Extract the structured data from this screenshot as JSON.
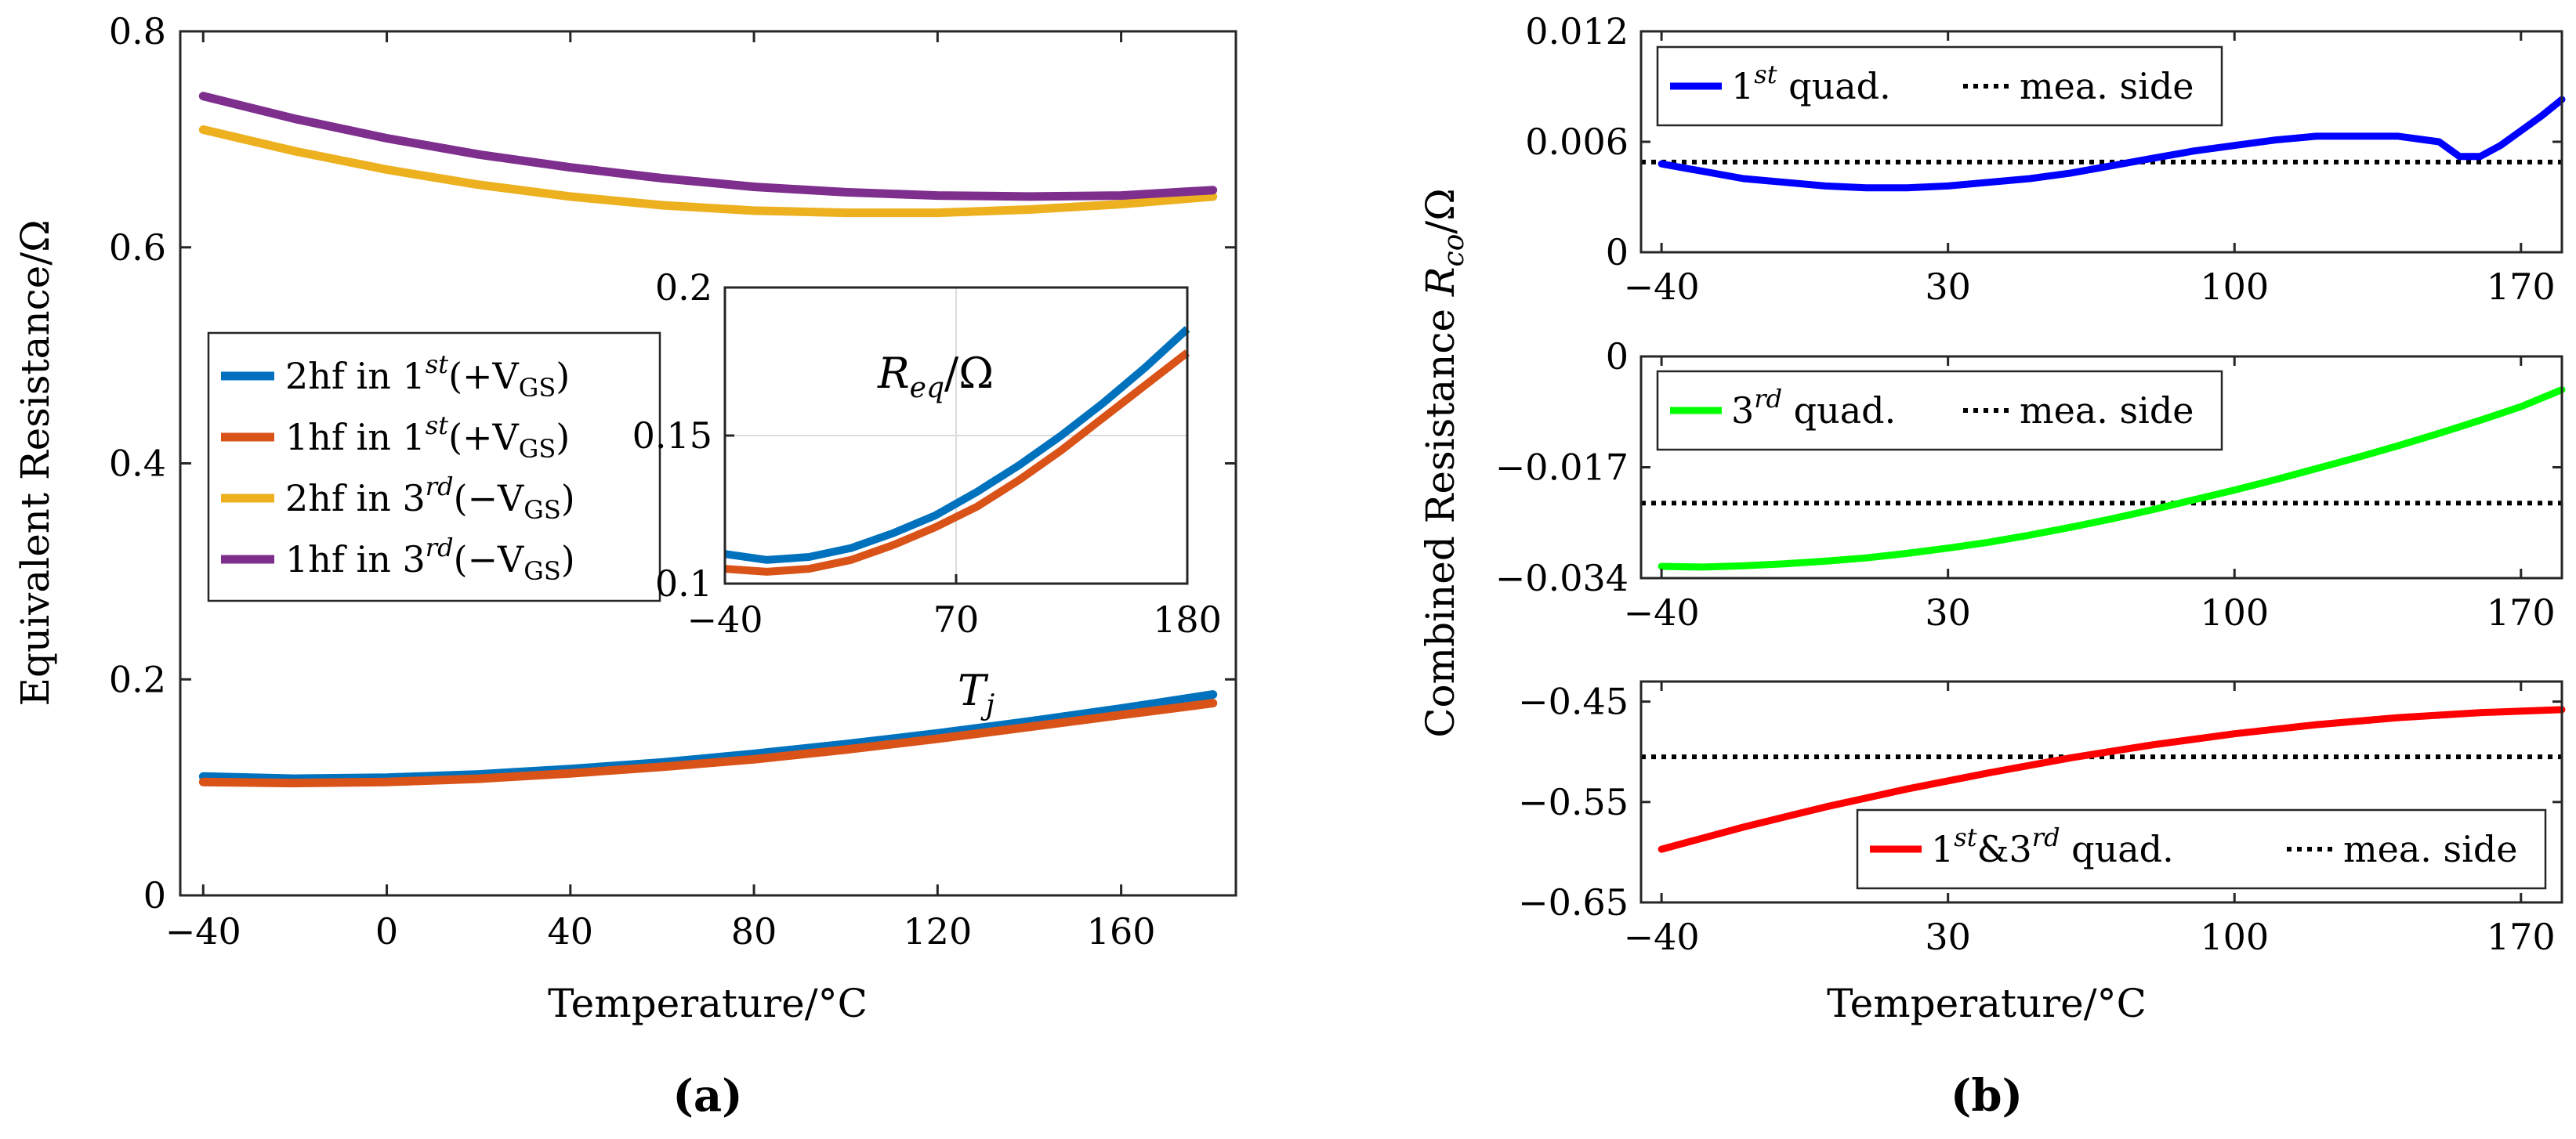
{
  "chart_data": [
    {
      "panel": "(a)",
      "type": "line",
      "xlabel": "Temperature/°C",
      "ylabel": "Equivalent Resistance/Ω",
      "xlim": [
        -45,
        185
      ],
      "ylim": [
        0,
        0.8
      ],
      "xticks": [
        "−40",
        "0",
        "40",
        "80",
        "120",
        "160"
      ],
      "yticks": [
        "0",
        "0.2",
        "0.4",
        "0.6",
        "0.8"
      ],
      "grid": false,
      "legend_position": "middle-left",
      "x": [
        -40,
        -20,
        0,
        20,
        40,
        60,
        80,
        100,
        120,
        140,
        160,
        180
      ],
      "series": [
        {
          "name": "2hf in 1st(+VGS)",
          "color": "#0072BD",
          "values": [
            0.11,
            0.108,
            0.109,
            0.112,
            0.117,
            0.123,
            0.131,
            0.14,
            0.15,
            0.161,
            0.173,
            0.186
          ]
        },
        {
          "name": "1hf in 1st(+VGS)",
          "color": "#D95319",
          "values": [
            0.105,
            0.104,
            0.105,
            0.108,
            0.113,
            0.119,
            0.126,
            0.135,
            0.145,
            0.156,
            0.167,
            0.178
          ]
        },
        {
          "name": "2hf in 3rd(−VGS)",
          "color": "#EDB120",
          "values": [
            0.709,
            0.689,
            0.672,
            0.658,
            0.647,
            0.639,
            0.634,
            0.632,
            0.632,
            0.635,
            0.64,
            0.647
          ]
        },
        {
          "name": "1hf in 3rd(−VGS)",
          "color": "#7E2F8E",
          "values": [
            0.74,
            0.719,
            0.701,
            0.686,
            0.674,
            0.664,
            0.656,
            0.651,
            0.648,
            0.647,
            0.648,
            0.653
          ]
        }
      ],
      "legend": {
        "entries": [
          {
            "prefix": "2hf in 1",
            "ord": "st",
            "mid": "(+V",
            "sub": "GS",
            "end": ")",
            "color": "#0072BD"
          },
          {
            "prefix": "1hf in 1",
            "ord": "st",
            "mid": "(+V",
            "sub": "GS",
            "end": ")",
            "color": "#D95319"
          },
          {
            "prefix": "2hf in 3",
            "ord": "rd",
            "mid": "(−V",
            "sub": "GS",
            "end": ")",
            "color": "#EDB120"
          },
          {
            "prefix": "1hf in 3",
            "ord": "rd",
            "mid": "(−V",
            "sub": "GS",
            "end": ")",
            "color": "#7E2F8E"
          }
        ]
      },
      "inset": {
        "label_main": "R",
        "label_sub": "eq",
        "label_end": "/Ω",
        "xlabel_main": "T",
        "xlabel_sub": "j",
        "xlim": [
          -40,
          180
        ],
        "ylim": [
          0.1,
          0.2
        ],
        "xticks": [
          "−40",
          "70",
          "180"
        ],
        "yticks": [
          "0.1",
          "0.15",
          "0.2"
        ],
        "grid": true
      }
    },
    {
      "panel": "(b)",
      "type": "line",
      "xlabel": "Temperature/°C",
      "ylabel": "Combined Resistance R_co/Ω",
      "ylabel_parts": {
        "main": "Combined Resistance ",
        "sym": "R",
        "sub": "co",
        "end": "/Ω"
      },
      "xlim": [
        -45,
        180
      ],
      "xticks": [
        "−40",
        "30",
        "100",
        "170"
      ],
      "subplots": [
        {
          "ylim": [
            0,
            0.012
          ],
          "yticks": [
            "0",
            "0.006",
            "0.012"
          ],
          "legend_position": "top-left",
          "legend": {
            "pre": "1",
            "ord": "st",
            "post": " quad.",
            "ref": "mea. side"
          },
          "series": {
            "color": "#0000FF",
            "x": [
              -40,
              -30,
              -20,
              -10,
              0,
              10,
              20,
              30,
              40,
              50,
              60,
              70,
              80,
              90,
              100,
              110,
              120,
              130,
              140,
              150,
              155,
              160,
              165,
              170,
              175,
              180
            ],
            "values": [
              0.0048,
              0.0044,
              0.004,
              0.0038,
              0.0036,
              0.0035,
              0.0035,
              0.0036,
              0.0038,
              0.004,
              0.0043,
              0.0047,
              0.0051,
              0.0055,
              0.0058,
              0.0061,
              0.0063,
              0.0063,
              0.0063,
              0.006,
              0.0052,
              0.0052,
              0.0058,
              0.0066,
              0.0074,
              0.0083
            ]
          },
          "reference": 0.0049
        },
        {
          "ylim": [
            -0.034,
            0
          ],
          "yticks": [
            "0",
            "−0.017",
            "−0.034"
          ],
          "legend_position": "top-left",
          "legend": {
            "pre": "3",
            "ord": "rd",
            "post": " quad.",
            "ref": "mea. side"
          },
          "series": {
            "color": "#00FF00",
            "x": [
              -40,
              -30,
              -20,
              -10,
              0,
              10,
              20,
              30,
              40,
              50,
              60,
              70,
              80,
              90,
              100,
              110,
              120,
              130,
              140,
              150,
              160,
              170,
              180
            ],
            "values": [
              -0.0322,
              -0.0323,
              -0.0321,
              -0.0318,
              -0.0314,
              -0.0309,
              -0.0302,
              -0.0294,
              -0.0285,
              -0.0274,
              -0.0262,
              -0.0249,
              -0.0235,
              -0.022,
              -0.0205,
              -0.0189,
              -0.0172,
              -0.0155,
              -0.0137,
              -0.0118,
              -0.0098,
              -0.0077,
              -0.0051
            ]
          },
          "reference": -0.0225
        },
        {
          "ylim": [
            -0.65,
            -0.43
          ],
          "yticks": [
            "−0.45",
            "−0.55",
            "−0.65"
          ],
          "legend_position": "bottom-right",
          "legend": {
            "pre": "1",
            "ord": "st",
            "mid": "&3",
            "ord2": "rd",
            "post": " quad.",
            "ref": "mea. side"
          },
          "series": {
            "color": "#FF0000",
            "x": [
              -40,
              -20,
              0,
              20,
              40,
              60,
              80,
              100,
              120,
              140,
              160,
              180
            ],
            "values": [
              -0.597,
              -0.575,
              -0.555,
              -0.537,
              -0.521,
              -0.506,
              -0.493,
              -0.482,
              -0.473,
              -0.466,
              -0.461,
              -0.458
            ]
          },
          "reference": -0.505
        }
      ]
    }
  ]
}
